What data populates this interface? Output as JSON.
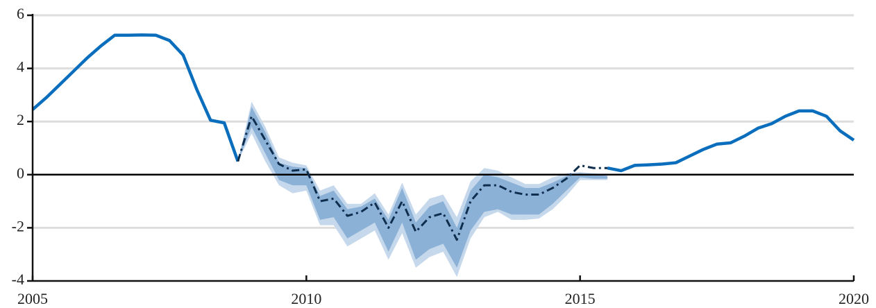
{
  "chart_data": {
    "type": "line",
    "x": [
      2005,
      2005.25,
      2005.5,
      2005.75,
      2006,
      2006.25,
      2006.5,
      2006.75,
      2007,
      2007.25,
      2007.5,
      2007.75,
      2008,
      2008.25,
      2008.5,
      2008.75,
      2009,
      2009.25,
      2009.5,
      2009.75,
      2010,
      2010.25,
      2010.5,
      2010.75,
      2011,
      2011.25,
      2011.5,
      2011.75,
      2012,
      2012.25,
      2012.5,
      2012.75,
      2013,
      2013.25,
      2013.5,
      2013.75,
      2014,
      2014.25,
      2014.5,
      2014.75,
      2015,
      2015.25,
      2015.5,
      2015.75,
      2016,
      2016.25,
      2016.5,
      2016.75,
      2017,
      2017.25,
      2017.5,
      2017.75,
      2018,
      2018.25,
      2018.5,
      2018.75,
      2019,
      2019.25,
      2019.5,
      2019.75,
      2020
    ],
    "bands": [
      {
        "color": "#c6d8eb",
        "lower": [
          null,
          null,
          null,
          null,
          null,
          null,
          null,
          null,
          null,
          null,
          null,
          null,
          null,
          null,
          null,
          0.5,
          1.55,
          0.5,
          -0.4,
          -0.7,
          -0.6,
          -1.9,
          -1.9,
          -2.7,
          -2.4,
          -2.1,
          -3.2,
          -2.2,
          -3.5,
          -3.1,
          -2.9,
          -3.85,
          -2.4,
          -1.6,
          -1.4,
          -1.7,
          -1.7,
          -1.65,
          -1.3,
          -0.8,
          -0.2,
          -0.2,
          -0.2,
          null,
          null,
          null,
          null,
          null,
          null,
          null,
          null,
          null,
          null,
          null,
          null,
          null,
          null,
          null,
          null,
          null,
          null
        ],
        "upper": [
          null,
          null,
          null,
          null,
          null,
          null,
          null,
          null,
          null,
          null,
          null,
          null,
          null,
          null,
          null,
          0.5,
          2.75,
          1.8,
          0.65,
          0.45,
          0.35,
          -0.6,
          -0.4,
          -1.1,
          -1.1,
          -0.7,
          -1.5,
          -0.3,
          -1.5,
          -0.9,
          -0.75,
          -1.6,
          -0.25,
          0.25,
          0.15,
          -0.1,
          -0.35,
          -0.35,
          -0.1,
          0.05,
          0.1,
          0.05,
          0,
          null,
          null,
          null,
          null,
          null,
          null,
          null,
          null,
          null,
          null,
          null,
          null,
          null,
          null,
          null,
          null,
          null,
          null
        ]
      },
      {
        "color": "#8cb1d7",
        "lower": [
          null,
          null,
          null,
          null,
          null,
          null,
          null,
          null,
          null,
          null,
          null,
          null,
          null,
          null,
          null,
          0.5,
          1.8,
          0.8,
          -0.2,
          -0.4,
          -0.4,
          -1.7,
          -1.6,
          -2.4,
          -2.1,
          -1.8,
          -2.9,
          -1.8,
          -3.2,
          -2.8,
          -2.6,
          -3.5,
          -2.1,
          -1.4,
          -1.3,
          -1.5,
          -1.5,
          -1.5,
          -1.1,
          -0.6,
          -0.1,
          -0.15,
          -0.15,
          null,
          null,
          null,
          null,
          null,
          null,
          null,
          null,
          null,
          null,
          null,
          null,
          null,
          null,
          null,
          null,
          null,
          null
        ],
        "upper": [
          null,
          null,
          null,
          null,
          null,
          null,
          null,
          null,
          null,
          null,
          null,
          null,
          null,
          null,
          null,
          0.5,
          2.55,
          1.6,
          0.45,
          0.3,
          0.25,
          -0.8,
          -0.6,
          -1.3,
          -1.2,
          -0.9,
          -1.7,
          -0.5,
          -1.8,
          -1.2,
          -1.0,
          -2.0,
          -0.6,
          0,
          -0.1,
          -0.3,
          -0.5,
          -0.5,
          -0.3,
          -0.05,
          0.05,
          0,
          -0.05,
          null,
          null,
          null,
          null,
          null,
          null,
          null,
          null,
          null,
          null,
          null,
          null,
          null,
          null,
          null,
          null,
          null,
          null
        ]
      }
    ],
    "series": [
      {
        "color": "#0a6ebd",
        "dash": false,
        "values": [
          2.45,
          2.9,
          3.4,
          3.9,
          4.4,
          4.85,
          5.25,
          5.25,
          5.26,
          5.25,
          5.05,
          4.5,
          3.2,
          2.05,
          1.95,
          0.5,
          null,
          null,
          null,
          null,
          null,
          null,
          null,
          null,
          null,
          null,
          null,
          null,
          null,
          null,
          null,
          null,
          null,
          null,
          null,
          null,
          null,
          null,
          null,
          null,
          null,
          null,
          0.25,
          0.15,
          0.35,
          0.37,
          0.4,
          0.45,
          0.7,
          0.95,
          1.15,
          1.2,
          1.45,
          1.75,
          1.92,
          2.2,
          2.4,
          2.4,
          2.2,
          1.65,
          1.3
        ]
      },
      {
        "color": "#0f2d4d",
        "dash": true,
        "values": [
          null,
          null,
          null,
          null,
          null,
          null,
          null,
          null,
          null,
          null,
          null,
          null,
          null,
          null,
          null,
          0.5,
          2.2,
          1.3,
          0.4,
          0.15,
          0.2,
          -1.0,
          -0.9,
          -1.55,
          -1.4,
          -1.05,
          -2.0,
          -1.0,
          -2.15,
          -1.6,
          -1.45,
          -2.45,
          -1.0,
          -0.4,
          -0.4,
          -0.65,
          -0.75,
          -0.75,
          -0.5,
          -0.15,
          0.35,
          0.25,
          0.25,
          null,
          null,
          null,
          null,
          null,
          null,
          null,
          null,
          null,
          null,
          null,
          null,
          null,
          null,
          null,
          null,
          null,
          null
        ]
      }
    ],
    "xlim": [
      2005,
      2020
    ],
    "ylim": [
      -4,
      6
    ],
    "xticks": [
      2005,
      2010,
      2015,
      2020
    ],
    "yticks": [
      -4,
      -2,
      0,
      2,
      4,
      6
    ],
    "grid": true,
    "zero_line": true
  }
}
